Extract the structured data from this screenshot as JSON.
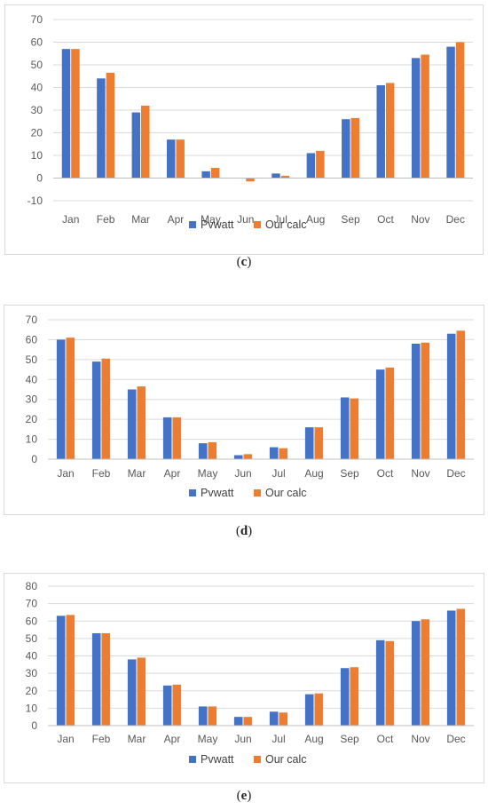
{
  "chart_data": [
    {
      "type": "bar",
      "caption_letter": "c",
      "categories": [
        "Jan",
        "Feb",
        "Mar",
        "Apr",
        "May",
        "Jun",
        "Jul",
        "Aug",
        "Sep",
        "Oct",
        "Nov",
        "Dec"
      ],
      "series": [
        {
          "name": "Pvwatt",
          "color": "#4472C4",
          "values": [
            57,
            44,
            29,
            17,
            3,
            0,
            2,
            11,
            26,
            41,
            53,
            58
          ]
        },
        {
          "name": "Our calc",
          "color": "#ED7D31",
          "values": [
            57,
            46.5,
            32,
            17,
            4.5,
            -1.5,
            1,
            12,
            26.5,
            42,
            54.5,
            60
          ]
        }
      ],
      "ylim": [
        -10,
        70
      ],
      "yticks": [
        -10,
        0,
        10,
        20,
        30,
        40,
        50,
        60,
        70
      ],
      "grid": true,
      "legend": "bottom"
    },
    {
      "type": "bar",
      "caption_letter": "d",
      "categories": [
        "Jan",
        "Feb",
        "Mar",
        "Apr",
        "May",
        "Jun",
        "Jul",
        "Aug",
        "Sep",
        "Oct",
        "Nov",
        "Dec"
      ],
      "series": [
        {
          "name": "Pvwatt",
          "color": "#4472C4",
          "values": [
            60,
            49,
            35,
            21,
            8,
            2,
            6,
            16,
            31,
            45,
            58,
            63
          ]
        },
        {
          "name": "Our calc",
          "color": "#ED7D31",
          "values": [
            61,
            50.5,
            36.5,
            21,
            8.5,
            2.5,
            5.5,
            16,
            30.5,
            46,
            58.5,
            64.5
          ]
        }
      ],
      "ylim": [
        0,
        70
      ],
      "yticks": [
        0,
        10,
        20,
        30,
        40,
        50,
        60,
        70
      ],
      "grid": true,
      "legend": "bottom"
    },
    {
      "type": "bar",
      "caption_letter": "e",
      "categories": [
        "Jan",
        "Feb",
        "Mar",
        "Apr",
        "May",
        "Jun",
        "Jul",
        "Aug",
        "Sep",
        "Oct",
        "Nov",
        "Dec"
      ],
      "series": [
        {
          "name": "Pvwatt",
          "color": "#4472C4",
          "values": [
            63,
            53,
            38,
            23,
            11,
            5,
            8,
            18,
            33,
            49,
            60,
            66
          ]
        },
        {
          "name": "Our calc",
          "color": "#ED7D31",
          "values": [
            63.5,
            53,
            39,
            23.5,
            11,
            5,
            7.5,
            18.5,
            33.5,
            48.5,
            61,
            67
          ]
        }
      ],
      "ylim": [
        0,
        80
      ],
      "yticks": [
        0,
        10,
        20,
        30,
        40,
        50,
        60,
        70,
        80
      ],
      "grid": true,
      "legend": "bottom"
    }
  ]
}
